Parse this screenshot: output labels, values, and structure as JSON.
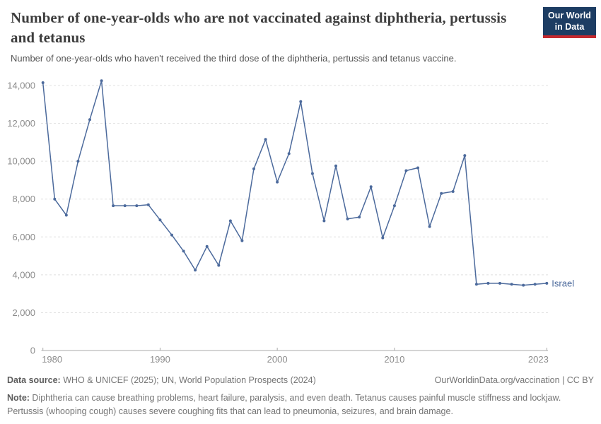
{
  "header": {
    "title": "Number of one-year-olds who are not vaccinated against diphtheria, pertussis and tetanus",
    "subtitle": "Number of one-year-olds who haven't received the third dose of the diphtheria, pertussis and tetanus vaccine.",
    "logo": {
      "line1": "Our World",
      "line2": "in Data",
      "bg_color": "#1d3d63",
      "accent_color": "#c5292e"
    }
  },
  "chart_data": {
    "type": "line",
    "x": [
      1980,
      1981,
      1982,
      1983,
      1984,
      1985,
      1986,
      1987,
      1988,
      1989,
      1990,
      1991,
      1992,
      1993,
      1994,
      1995,
      1996,
      1997,
      1998,
      1999,
      2000,
      2001,
      2002,
      2003,
      2004,
      2005,
      2006,
      2007,
      2008,
      2009,
      2010,
      2011,
      2012,
      2013,
      2014,
      2015,
      2016,
      2017,
      2018,
      2019,
      2020,
      2021,
      2022,
      2023
    ],
    "series": [
      {
        "name": "Israel",
        "color": "#4c6a9c",
        "values": [
          14150,
          8000,
          7150,
          10000,
          12200,
          14250,
          7650,
          7650,
          7650,
          7700,
          6900,
          6100,
          5250,
          4250,
          5500,
          4500,
          6850,
          5800,
          9600,
          11150,
          8900,
          10400,
          13150,
          9350,
          6850,
          9750,
          6950,
          7050,
          8650,
          5950,
          7650,
          9500,
          9650,
          6550,
          8300,
          8400,
          10300,
          3500,
          3550,
          3550,
          3500,
          3450,
          3500,
          3550
        ]
      }
    ],
    "title": "Number of one-year-olds who are not vaccinated against diphtheria, pertussis and tetanus",
    "xlabel": "",
    "ylabel": "",
    "xlim": [
      1980,
      2023
    ],
    "ylim": [
      0,
      14000
    ],
    "xticks": [
      {
        "value": 1980,
        "label": "1980"
      },
      {
        "value": 1990,
        "label": "1990"
      },
      {
        "value": 2000,
        "label": "2000"
      },
      {
        "value": 2010,
        "label": "2010"
      },
      {
        "value": 2023,
        "label": "2023"
      }
    ],
    "yticks": [
      {
        "value": 0,
        "label": "0"
      },
      {
        "value": 2000,
        "label": "2,000"
      },
      {
        "value": 4000,
        "label": "4,000"
      },
      {
        "value": 6000,
        "label": "6,000"
      },
      {
        "value": 8000,
        "label": "8,000"
      },
      {
        "value": 10000,
        "label": "10,000"
      },
      {
        "value": 12000,
        "label": "12,000"
      },
      {
        "value": 14000,
        "label": "14,000"
      }
    ],
    "grid": "horizontal-dashed",
    "legend_position": "end-of-line-label",
    "end_label": "Israel",
    "colors": {
      "gridline": "#e0e0e0",
      "axis": "#a8a8a8",
      "tick_label": "#8c8c8c",
      "line": "#4c6a9c"
    }
  },
  "footer": {
    "data_source_label": "Data source:",
    "data_source_text": " WHO & UNICEF (2025); UN, World Population Prospects (2024)",
    "attribution": "OurWorldinData.org/vaccination | CC BY",
    "note_label": "Note:",
    "note_text": " Diphtheria can cause breathing problems, heart failure, paralysis, and even death. Tetanus causes painful muscle stiffness and lockjaw. Pertussis (whooping cough) causes severe coughing fits that can lead to pneumonia, seizures, and brain damage."
  }
}
